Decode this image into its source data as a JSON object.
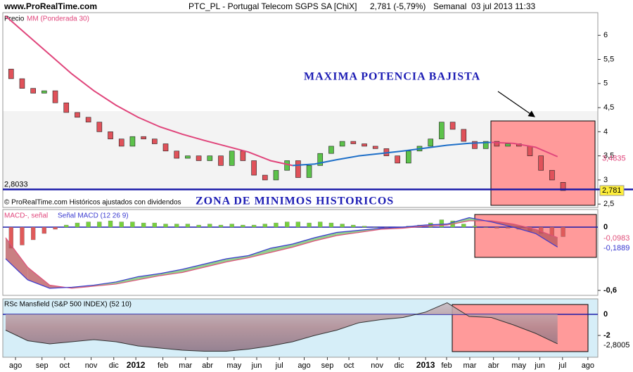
{
  "chart_data": [
    {
      "type": "candlestick",
      "source": "www.ProRealTime.com",
      "title": "PTC_PL - Portugal Telecom SGPS SA [ChiX]",
      "quote": "2,781 (-5,79%)",
      "period": "Semanal  03 jul 2013 11:33",
      "legend": "Precio",
      "note": "© ProRealTime.com Históricos ajustados con dividendos",
      "annotations": [
        "MAXIMA POTENCIA BAJISTA",
        "ZONA DE MINIMOS HISTORICOS"
      ],
      "xlim": [
        -0.5,
        107.3
      ],
      "ylim": [
        2.43,
        6.47
      ],
      "yticks": [
        6,
        {
          "value": 5.5,
          "label": "5,5"
        },
        5,
        {
          "value": 4.5,
          "label": "4,5"
        },
        4,
        {
          "value": 3.5,
          "label": "3,5"
        },
        3,
        {
          "value": 2.5,
          "label": "2,5"
        }
      ],
      "x": [
        1,
        3,
        5,
        7,
        9,
        11,
        13,
        15,
        17,
        19,
        21,
        23,
        25,
        27,
        29,
        31,
        33,
        35,
        37,
        39,
        41,
        43,
        45,
        47,
        49,
        51,
        53,
        55,
        57,
        59,
        61,
        63,
        65,
        67,
        69,
        71,
        73,
        75,
        77,
        79,
        81,
        83,
        85,
        87,
        89,
        91,
        93,
        95,
        97,
        99,
        101
      ],
      "open": [
        5.3,
        5.1,
        4.9,
        4.8,
        4.85,
        4.6,
        4.4,
        4.3,
        4.2,
        4.0,
        3.85,
        3.7,
        3.9,
        3.85,
        3.75,
        3.6,
        3.45,
        3.5,
        3.4,
        3.5,
        3.3,
        3.6,
        3.4,
        3.1,
        3.0,
        3.2,
        3.4,
        3.05,
        3.3,
        3.55,
        3.7,
        3.8,
        3.75,
        3.7,
        3.65,
        3.5,
        3.35,
        3.6,
        3.7,
        3.85,
        4.2,
        4.05,
        3.8,
        3.65,
        3.8,
        3.7,
        3.75,
        3.7,
        3.5,
        3.2,
        2.95
      ],
      "close": [
        5.1,
        4.9,
        4.8,
        4.85,
        4.6,
        4.4,
        4.3,
        4.2,
        4.0,
        3.85,
        3.7,
        3.9,
        3.85,
        3.75,
        3.6,
        3.45,
        3.5,
        3.4,
        3.5,
        3.3,
        3.6,
        3.4,
        3.1,
        3.0,
        3.2,
        3.4,
        3.05,
        3.3,
        3.55,
        3.7,
        3.8,
        3.75,
        3.7,
        3.65,
        3.5,
        3.35,
        3.6,
        3.7,
        3.85,
        4.2,
        4.05,
        3.8,
        3.65,
        3.8,
        3.7,
        3.75,
        3.7,
        3.5,
        3.2,
        3.0,
        2.781
      ],
      "close_label": "2,781",
      "up_color": "#5cc24a",
      "down_color": "#e0525a",
      "ma": {
        "name": "MM (Ponderada 30)",
        "color": "#e0457b",
        "rising_color": "#1e6fc8",
        "x": [
          0,
          4,
          8,
          12,
          16,
          20,
          24,
          28,
          32,
          36,
          40,
          44,
          48,
          52,
          56,
          60,
          64,
          68,
          72,
          76,
          80,
          84,
          88,
          92,
          96,
          100
        ],
        "values": [
          6.4,
          6.0,
          5.6,
          5.2,
          4.85,
          4.55,
          4.3,
          4.1,
          3.95,
          3.82,
          3.7,
          3.58,
          3.4,
          3.3,
          3.33,
          3.42,
          3.5,
          3.55,
          3.6,
          3.66,
          3.72,
          3.76,
          3.78,
          3.76,
          3.68,
          3.4835
        ],
        "end_label": "3,4835"
      },
      "support": {
        "value": 2.8033,
        "label": "2,8033"
      }
    },
    {
      "type": "macd",
      "title": "MACD-, señal",
      "subtitle": "Señal MACD (12 26 9)",
      "xlim": [
        -0.5,
        107.3
      ],
      "ylim": [
        -0.647,
        0.167
      ],
      "yticks": [
        0,
        {
          "value": -0.6,
          "label": "-0,6"
        }
      ],
      "x": [
        1,
        3,
        5,
        7,
        9,
        11,
        13,
        15,
        17,
        19,
        21,
        23,
        25,
        27,
        29,
        31,
        33,
        35,
        37,
        39,
        41,
        43,
        45,
        47,
        49,
        51,
        53,
        55,
        57,
        59,
        61,
        63,
        65,
        67,
        69,
        71,
        73,
        75,
        77,
        79,
        81,
        83,
        85,
        87,
        89,
        91,
        93,
        95,
        97,
        99,
        101
      ],
      "histogram": [
        -0.2,
        -0.17,
        -0.12,
        -0.06,
        -0.02,
        0.02,
        0.04,
        0.05,
        0.05,
        0.06,
        0.05,
        0.05,
        0.04,
        0.04,
        0.03,
        0.03,
        0.03,
        0.02,
        0.03,
        0.02,
        0.03,
        0.02,
        0.02,
        0.03,
        0.04,
        0.05,
        0.05,
        0.04,
        0.05,
        0.04,
        0.03,
        0.02,
        0.01,
        0,
        -0.01,
        -0.01,
        0.01,
        0.02,
        0.04,
        0.07,
        0.06,
        0.03,
        0.01,
        0,
        -0.01,
        -0.01,
        -0.02,
        -0.04,
        -0.06,
        -0.08,
        -0.09
      ],
      "up_color": "#77d13e",
      "down_color": "#e05a5a",
      "line_x": [
        0,
        4,
        8,
        12,
        16,
        20,
        24,
        28,
        32,
        36,
        40,
        44,
        48,
        52,
        56,
        60,
        64,
        68,
        72,
        76,
        80,
        84,
        88,
        92,
        96,
        100
      ],
      "macd": {
        "color": "#3a3ad0",
        "values": [
          -0.3,
          -0.5,
          -0.58,
          -0.57,
          -0.55,
          -0.52,
          -0.47,
          -0.44,
          -0.4,
          -0.35,
          -0.3,
          -0.27,
          -0.2,
          -0.16,
          -0.1,
          -0.05,
          -0.03,
          -0.01,
          0,
          0.02,
          0.03,
          0.09,
          0.05,
          0,
          -0.06,
          -0.1889
        ],
        "end_label": "-0,1889"
      },
      "signal": {
        "color": "#e0507a",
        "values": [
          -0.1,
          -0.38,
          -0.55,
          -0.58,
          -0.56,
          -0.54,
          -0.5,
          -0.46,
          -0.43,
          -0.38,
          -0.33,
          -0.29,
          -0.24,
          -0.19,
          -0.13,
          -0.08,
          -0.05,
          -0.02,
          -0.01,
          0.01,
          0.02,
          0.06,
          0.06,
          0.03,
          -0.02,
          -0.0983
        ],
        "end_label": "-0,0983"
      }
    },
    {
      "type": "area",
      "title": "RSc Mansfield (S&P 500 INDEX) (52 10)",
      "xlim": [
        -0.5,
        107.3
      ],
      "ylim": [
        -4.07,
        1.47
      ],
      "yticks": [
        0,
        -2
      ],
      "x": [
        0,
        4,
        8,
        12,
        16,
        20,
        24,
        28,
        32,
        36,
        40,
        44,
        48,
        52,
        56,
        60,
        64,
        68,
        72,
        76,
        80,
        84,
        88,
        92,
        96,
        100
      ],
      "values": [
        -1.5,
        -2.5,
        -2.8,
        -2.6,
        -2.4,
        -2.6,
        -3.0,
        -3.2,
        -3.4,
        -3.5,
        -3.5,
        -3.3,
        -3.0,
        -2.6,
        -2.0,
        -1.5,
        -0.8,
        -0.5,
        -0.3,
        0.2,
        1.1,
        -0.2,
        -0.3,
        -1.0,
        -1.8,
        -2.8005
      ],
      "end_label": "-2,8005",
      "color": "#333333",
      "xticks": [
        {
          "value": 1.8,
          "label": "ago"
        },
        {
          "value": 6.6,
          "label": "sep"
        },
        {
          "value": 10.7,
          "label": "oct"
        },
        {
          "value": 15.5,
          "label": "nov"
        },
        {
          "value": 19.6,
          "label": "dic"
        },
        {
          "value": 23.6,
          "label": "2012"
        },
        {
          "value": 28.5,
          "label": "feb"
        },
        {
          "value": 32.6,
          "label": "mar"
        },
        {
          "value": 36.6,
          "label": "abr"
        },
        {
          "value": 41.4,
          "label": "may"
        },
        {
          "value": 45.5,
          "label": "jun"
        },
        {
          "value": 49.6,
          "label": "jul"
        },
        {
          "value": 54.1,
          "label": "ago"
        },
        {
          "value": 58.3,
          "label": "sep"
        },
        {
          "value": 62.2,
          "label": "oct"
        },
        {
          "value": 67.3,
          "label": "nov"
        },
        {
          "value": 71.3,
          "label": "dic"
        },
        {
          "value": 76.1,
          "label": "2013"
        },
        {
          "value": 79.9,
          "label": "feb"
        },
        {
          "value": 84.1,
          "label": "mar"
        },
        {
          "value": 88.4,
          "label": "abr"
        },
        {
          "value": 93,
          "label": "may"
        },
        {
          "value": 96.8,
          "label": "jun"
        },
        {
          "value": 100.9,
          "label": "jul"
        },
        {
          "value": 105.5,
          "label": "ago"
        }
      ]
    }
  ]
}
